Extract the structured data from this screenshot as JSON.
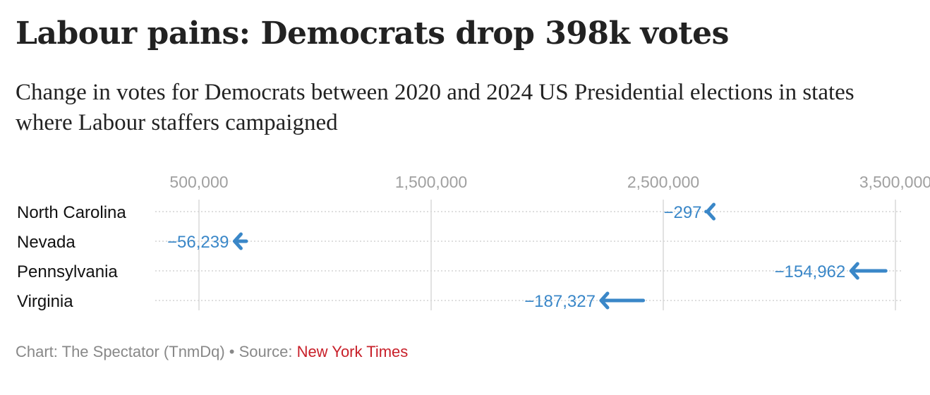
{
  "title": "Labour pains: Democrats drop 398k votes",
  "subtitle": "Change in votes for Democrats between 2020 and 2024 US Presidential elections in states where Labour staffers campaigned",
  "chart_data": {
    "type": "arrow",
    "xlim": [
      300000,
      3540000
    ],
    "ticks": [
      500000,
      1500000,
      2500000,
      3500000
    ],
    "tick_labels": [
      "500,000",
      "1,500,000",
      "2,500,000",
      "3,500,000"
    ],
    "color": "#3a87c8",
    "rows": [
      {
        "state": "North Carolina",
        "from": 2684292,
        "to": 2683995,
        "label": "−297"
      },
      {
        "state": "Nevada",
        "from": 703486,
        "to": 647247,
        "label": "−56,239"
      },
      {
        "state": "Pennsylvania",
        "from": 3458229,
        "to": 3303267,
        "label": "−154,962"
      },
      {
        "state": "Virginia",
        "from": 2413568,
        "to": 2226241,
        "label": "−187,327"
      }
    ]
  },
  "footer": {
    "credit": "Chart: The Spectator (TnmDq) • Source: ",
    "source": "New York Times"
  }
}
